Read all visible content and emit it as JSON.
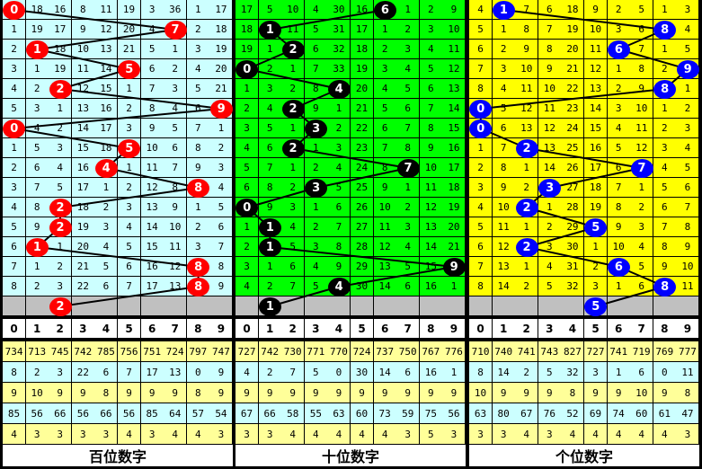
{
  "header_digits": [
    "0",
    "1",
    "2",
    "3",
    "4",
    "5",
    "6",
    "7",
    "8",
    "9"
  ],
  "sections": [
    {
      "label": "百位数字",
      "bg": "#ccffff",
      "ball_color": "#ff0000",
      "rows": [
        [
          "0",
          "18",
          "16",
          "8",
          "11",
          "19",
          "3",
          "36",
          "1",
          "17"
        ],
        [
          "1",
          "19",
          "17",
          "9",
          "12",
          "20",
          "4",
          "7",
          "2",
          "18"
        ],
        [
          "2",
          "1",
          "18",
          "10",
          "13",
          "21",
          "5",
          "1",
          "3",
          "19"
        ],
        [
          "3",
          "1",
          "19",
          "11",
          "14",
          "5",
          "6",
          "2",
          "4",
          "20"
        ],
        [
          "4",
          "2",
          "2",
          "12",
          "15",
          "1",
          "7",
          "3",
          "5",
          "21"
        ],
        [
          "5",
          "3",
          "1",
          "13",
          "16",
          "2",
          "8",
          "4",
          "6",
          "9"
        ],
        [
          "0",
          "4",
          "2",
          "14",
          "17",
          "3",
          "9",
          "5",
          "7",
          "1"
        ],
        [
          "1",
          "5",
          "3",
          "15",
          "18",
          "5",
          "10",
          "6",
          "8",
          "2"
        ],
        [
          "2",
          "6",
          "4",
          "16",
          "4",
          "1",
          "11",
          "7",
          "9",
          "3"
        ],
        [
          "3",
          "7",
          "5",
          "17",
          "1",
          "2",
          "12",
          "8",
          "8",
          "4"
        ],
        [
          "4",
          "8",
          "2",
          "18",
          "2",
          "3",
          "13",
          "9",
          "1",
          "5"
        ],
        [
          "5",
          "9",
          "2",
          "19",
          "3",
          "4",
          "14",
          "10",
          "2",
          "6"
        ],
        [
          "6",
          "1",
          "1",
          "20",
          "4",
          "5",
          "15",
          "11",
          "3",
          "7"
        ],
        [
          "7",
          "1",
          "2",
          "21",
          "5",
          "6",
          "16",
          "12",
          "8",
          "8"
        ],
        [
          "8",
          "2",
          "3",
          "22",
          "6",
          "7",
          "17",
          "13",
          "8",
          "9"
        ]
      ],
      "hits": [
        0,
        7,
        1,
        5,
        2,
        9,
        0,
        5,
        4,
        8,
        2,
        2,
        1,
        8,
        8
      ],
      "next": {
        "col": 2,
        "digit": "2"
      },
      "stats": [
        [
          "734",
          "713",
          "745",
          "742",
          "785",
          "756",
          "751",
          "724",
          "797",
          "747"
        ],
        [
          "8",
          "2",
          "3",
          "22",
          "6",
          "7",
          "17",
          "13",
          "0",
          "9"
        ],
        [
          "9",
          "10",
          "9",
          "9",
          "8",
          "9",
          "9",
          "9",
          "8",
          "9"
        ],
        [
          "85",
          "56",
          "66",
          "56",
          "66",
          "56",
          "85",
          "64",
          "57",
          "54"
        ],
        [
          "4",
          "3",
          "3",
          "3",
          "3",
          "4",
          "3",
          "4",
          "4",
          "3"
        ]
      ]
    },
    {
      "label": "十位数字",
      "bg": "#00ff00",
      "ball_color": "#000000",
      "rows": [
        [
          "17",
          "5",
          "10",
          "4",
          "30",
          "16",
          "6",
          "1",
          "2",
          "9"
        ],
        [
          "18",
          "1",
          "11",
          "5",
          "31",
          "17",
          "1",
          "2",
          "3",
          "10"
        ],
        [
          "19",
          "1",
          "2",
          "6",
          "32",
          "18",
          "2",
          "3",
          "4",
          "11"
        ],
        [
          "0",
          "2",
          "1",
          "7",
          "33",
          "19",
          "3",
          "4",
          "5",
          "12"
        ],
        [
          "1",
          "3",
          "2",
          "8",
          "4",
          "20",
          "4",
          "5",
          "6",
          "13"
        ],
        [
          "2",
          "4",
          "2",
          "9",
          "1",
          "21",
          "5",
          "6",
          "7",
          "14"
        ],
        [
          "3",
          "5",
          "1",
          "3",
          "2",
          "22",
          "6",
          "7",
          "8",
          "15"
        ],
        [
          "4",
          "6",
          "2",
          "1",
          "3",
          "23",
          "7",
          "8",
          "9",
          "16"
        ],
        [
          "5",
          "7",
          "1",
          "2",
          "4",
          "24",
          "8",
          "7",
          "10",
          "17"
        ],
        [
          "6",
          "8",
          "2",
          "3",
          "5",
          "25",
          "9",
          "1",
          "11",
          "18"
        ],
        [
          "0",
          "9",
          "3",
          "1",
          "6",
          "26",
          "10",
          "2",
          "12",
          "19"
        ],
        [
          "1",
          "1",
          "4",
          "2",
          "7",
          "27",
          "11",
          "3",
          "13",
          "20"
        ],
        [
          "2",
          "1",
          "5",
          "3",
          "8",
          "28",
          "12",
          "4",
          "14",
          "21"
        ],
        [
          "3",
          "1",
          "6",
          "4",
          "9",
          "29",
          "13",
          "5",
          "15",
          "9"
        ],
        [
          "4",
          "2",
          "7",
          "5",
          "4",
          "30",
          "14",
          "6",
          "16",
          "1"
        ]
      ],
      "hits": [
        6,
        1,
        2,
        0,
        4,
        2,
        3,
        2,
        7,
        3,
        0,
        1,
        1,
        9,
        4
      ],
      "next": {
        "col": 1,
        "digit": "1"
      },
      "stats": [
        [
          "727",
          "742",
          "730",
          "771",
          "770",
          "724",
          "737",
          "750",
          "767",
          "776"
        ],
        [
          "4",
          "2",
          "7",
          "5",
          "0",
          "30",
          "14",
          "6",
          "16",
          "1"
        ],
        [
          "9",
          "9",
          "9",
          "9",
          "9",
          "9",
          "9",
          "9",
          "9",
          "9"
        ],
        [
          "67",
          "66",
          "58",
          "55",
          "63",
          "60",
          "73",
          "59",
          "75",
          "56"
        ],
        [
          "3",
          "3",
          "4",
          "4",
          "4",
          "4",
          "4",
          "3",
          "5",
          "3"
        ]
      ]
    },
    {
      "label": "个位数字",
      "bg": "#ffff00",
      "ball_color": "#0000ff",
      "rows": [
        [
          "4",
          "1",
          "7",
          "6",
          "18",
          "9",
          "2",
          "5",
          "1",
          "3"
        ],
        [
          "5",
          "1",
          "8",
          "7",
          "19",
          "10",
          "3",
          "6",
          "8",
          "4"
        ],
        [
          "6",
          "2",
          "9",
          "8",
          "20",
          "11",
          "6",
          "7",
          "1",
          "5"
        ],
        [
          "7",
          "3",
          "10",
          "9",
          "21",
          "12",
          "1",
          "8",
          "2",
          "9"
        ],
        [
          "8",
          "4",
          "11",
          "10",
          "22",
          "13",
          "2",
          "9",
          "8",
          "1"
        ],
        [
          "0",
          "5",
          "12",
          "11",
          "23",
          "14",
          "3",
          "10",
          "1",
          "2"
        ],
        [
          "0",
          "6",
          "13",
          "12",
          "24",
          "15",
          "4",
          "11",
          "2",
          "3"
        ],
        [
          "1",
          "7",
          "2",
          "13",
          "25",
          "16",
          "5",
          "12",
          "3",
          "4"
        ],
        [
          "2",
          "8",
          "1",
          "14",
          "26",
          "17",
          "6",
          "7",
          "4",
          "5"
        ],
        [
          "3",
          "9",
          "2",
          "3",
          "27",
          "18",
          "7",
          "1",
          "5",
          "6"
        ],
        [
          "4",
          "10",
          "2",
          "1",
          "28",
          "19",
          "8",
          "2",
          "6",
          "7"
        ],
        [
          "5",
          "11",
          "1",
          "2",
          "29",
          "5",
          "9",
          "3",
          "7",
          "8"
        ],
        [
          "6",
          "12",
          "2",
          "3",
          "30",
          "1",
          "10",
          "4",
          "8",
          "9"
        ],
        [
          "7",
          "13",
          "1",
          "4",
          "31",
          "2",
          "6",
          "5",
          "9",
          "10"
        ],
        [
          "8",
          "14",
          "2",
          "5",
          "32",
          "3",
          "1",
          "6",
          "8",
          "11"
        ]
      ],
      "hits": [
        1,
        8,
        6,
        9,
        8,
        0,
        0,
        2,
        7,
        3,
        2,
        5,
        2,
        6,
        8
      ],
      "next": {
        "col": 5,
        "digit": "5"
      },
      "stats": [
        [
          "710",
          "740",
          "741",
          "743",
          "827",
          "727",
          "741",
          "719",
          "769",
          "777"
        ],
        [
          "8",
          "14",
          "2",
          "5",
          "32",
          "3",
          "1",
          "6",
          "0",
          "11"
        ],
        [
          "10",
          "9",
          "9",
          "9",
          "8",
          "9",
          "9",
          "10",
          "9",
          "8"
        ],
        [
          "63",
          "80",
          "67",
          "76",
          "52",
          "69",
          "74",
          "60",
          "61",
          "47"
        ],
        [
          "3",
          "3",
          "4",
          "3",
          "4",
          "4",
          "4",
          "4",
          "4",
          "3"
        ]
      ]
    }
  ],
  "colors": {
    "stat_yellow": "#ffff99",
    "stat_cyan": "#ccffff",
    "grey_row": "#c0c0c0"
  }
}
